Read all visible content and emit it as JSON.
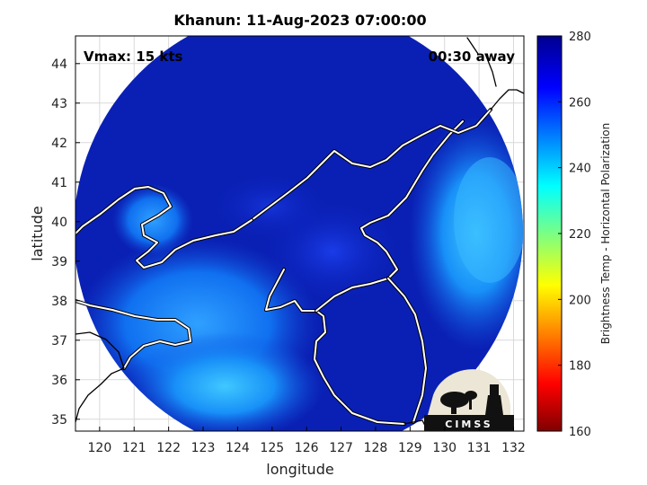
{
  "chart_data": {
    "type": "heatmap",
    "title": "Khanun: 11-Aug-2023 07:00:00",
    "annotation_left": "Vmax: 15 kts",
    "annotation_right": "00:30 away",
    "xlabel": "longitude",
    "ylabel": "latitude",
    "xlim": [
      119.3,
      132.3
    ],
    "ylim": [
      34.7,
      44.7
    ],
    "x_ticks": [
      120,
      121,
      122,
      123,
      124,
      125,
      126,
      127,
      128,
      129,
      130,
      131,
      132
    ],
    "y_ticks": [
      35,
      36,
      37,
      38,
      39,
      40,
      41,
      42,
      43,
      44
    ],
    "grid": true,
    "colorbar": {
      "label": "Brightness Temp - Horizontal Polarization",
      "range": [
        160,
        280
      ],
      "ticks": [
        160,
        180,
        200,
        220,
        240,
        260,
        280
      ],
      "colors": [
        "#800000",
        "#ff0000",
        "#ffff00",
        "#00ffff",
        "#0000ff",
        "#00008f"
      ]
    },
    "swath": {
      "center_lon": 125.8,
      "center_lat": 39.3,
      "shape": "circle",
      "dominant_value": 276
    },
    "logo": "CIMSS"
  }
}
